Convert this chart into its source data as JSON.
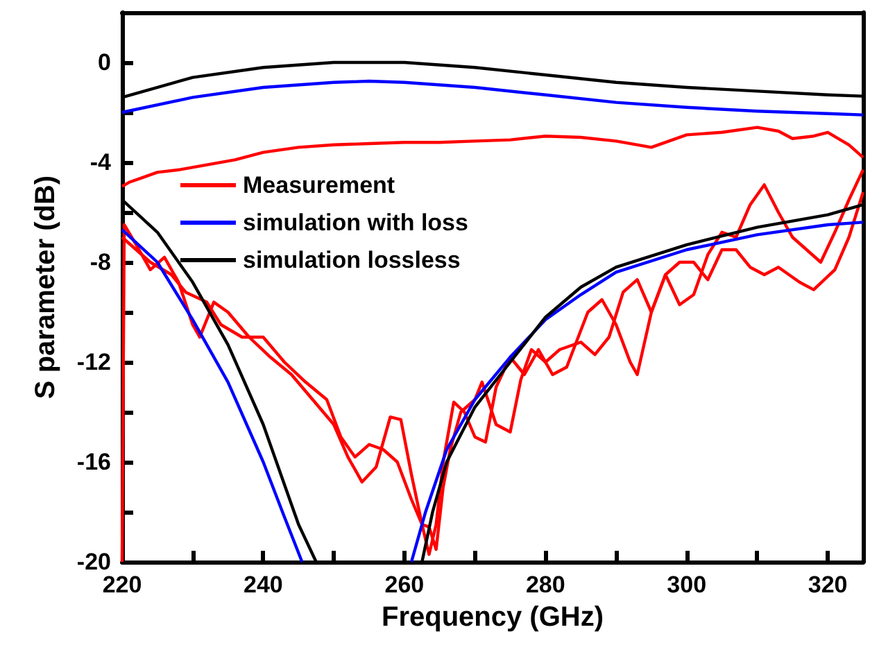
{
  "chart_data": {
    "type": "line",
    "xlabel": "Frequency (GHz)",
    "ylabel": "S parameter (dB)",
    "xlim": [
      220,
      325
    ],
    "ylim": [
      -20,
      2
    ],
    "xticks": [
      220,
      {
        "value": 230,
        "label": null
      },
      240,
      {
        "value": 250,
        "label": null
      },
      260,
      {
        "value": 270,
        "label": null
      },
      280,
      {
        "value": 290,
        "label": null
      },
      300,
      {
        "value": 310,
        "label": null
      },
      320
    ],
    "yticks": [
      -20,
      {
        "value": -18,
        "label": null
      },
      -16,
      {
        "value": -14,
        "label": null
      },
      -12,
      {
        "value": -10,
        "label": null
      },
      -8,
      {
        "value": -6,
        "label": null
      },
      -4,
      {
        "value": -2,
        "label": null
      },
      0,
      {
        "value": 2,
        "label": null
      }
    ],
    "grid": false,
    "legend": "top left",
    "marker": "none",
    "series": [
      {
        "name": "Measurement",
        "color": "#ff0000",
        "x": [
          220,
          221,
          223,
          225,
          228,
          232,
          236,
          240,
          245,
          250,
          255,
          260,
          265,
          270,
          275,
          280,
          285,
          290,
          295,
          300,
          305,
          310,
          313,
          315,
          318,
          320,
          323,
          325
        ],
        "values": [
          -4.96,
          -4.8,
          -4.6,
          -4.4,
          -4.3,
          -4.1,
          -3.9,
          -3.6,
          -3.4,
          -3.3,
          -3.25,
          -3.2,
          -3.2,
          -3.15,
          -3.1,
          -2.95,
          -3.0,
          -3.15,
          -3.4,
          -2.9,
          -2.8,
          -2.6,
          -2.75,
          -3.05,
          -2.95,
          -2.8,
          -3.3,
          -3.8
        ]
      },
      {
        "color": "#ff0000",
        "x": [
          220,
          220.3,
          222,
          224,
          226,
          228,
          230,
          231,
          233,
          235,
          238,
          241,
          244,
          247,
          250,
          252,
          254,
          256,
          258,
          259.5,
          261,
          262.5,
          263.5,
          264.5,
          265.5,
          267,
          268.5,
          270,
          271.5,
          273,
          275,
          277,
          279,
          281,
          283,
          286,
          288,
          290,
          292,
          293,
          295,
          297,
          299,
          301,
          303,
          305,
          307,
          309,
          311,
          313,
          316,
          318,
          321,
          323,
          325
        ],
        "values": [
          -20,
          -6.5,
          -7.3,
          -8.3,
          -7.8,
          -8.8,
          -10.5,
          -11,
          -9.6,
          -10,
          -11,
          -11.8,
          -12.5,
          -13.5,
          -14.5,
          -15.8,
          -16.8,
          -16.2,
          -14.2,
          -14.3,
          -16.5,
          -18.5,
          -19.7,
          -18.5,
          -16,
          -13.6,
          -14,
          -15,
          -15.2,
          -13,
          -11.8,
          -12.5,
          -11.5,
          -12.5,
          -12.2,
          -10,
          -9.5,
          -10.5,
          -12,
          -12.5,
          -10,
          -8.5,
          -8,
          -8,
          -8.7,
          -7.5,
          -7.5,
          -8.2,
          -8.5,
          -8.2,
          -8.8,
          -9.1,
          -8.3,
          -7,
          -5.2
        ]
      },
      {
        "color": "#ff0000",
        "x": [
          220,
          222,
          224,
          227,
          229,
          232,
          234,
          237,
          240,
          243,
          246,
          249,
          251,
          253,
          255,
          257,
          259,
          261,
          262.5,
          263.5,
          264.5,
          265.5,
          266.5,
          268,
          270,
          271,
          273,
          275,
          276.5,
          278,
          280,
          282,
          285,
          287,
          289,
          291,
          293,
          295,
          297,
          299,
          301,
          303,
          305,
          307,
          309,
          311,
          313,
          315,
          317,
          319,
          321,
          323,
          325
        ],
        "values": [
          -7,
          -7.5,
          -8,
          -8.5,
          -9.2,
          -9.6,
          -10.5,
          -11,
          -11,
          -12,
          -12.8,
          -13.5,
          -15,
          -15.8,
          -15.3,
          -15.5,
          -16,
          -17.5,
          -18.5,
          -18.6,
          -19.5,
          -17,
          -15.5,
          -14,
          -13.5,
          -12.8,
          -14.5,
          -14.8,
          -12.7,
          -11.5,
          -12,
          -11.5,
          -11.2,
          -11.7,
          -11,
          -9.2,
          -8.7,
          -10,
          -8.5,
          -9.7,
          -9.3,
          -7.7,
          -6.8,
          -7,
          -5.7,
          -4.9,
          -6,
          -7,
          -7.5,
          -8,
          -6.8,
          -5.5,
          -4.3
        ]
      },
      {
        "name": "simulation with loss",
        "color": "#0000ff",
        "x": [
          220,
          230,
          240,
          250,
          255,
          260,
          270,
          280,
          290,
          300,
          310,
          320,
          325
        ],
        "values": [
          -2,
          -1.4,
          -1.0,
          -0.8,
          -0.75,
          -0.8,
          -1.0,
          -1.3,
          -1.6,
          -1.8,
          -1.95,
          -2.05,
          -2.1
        ]
      },
      {
        "color": "#0000ff",
        "x": [
          220,
          225,
          230,
          235,
          240,
          243,
          245.5
        ],
        "values": [
          -6.7,
          -8,
          -10.3,
          -12.8,
          -16,
          -18.2,
          -20
        ]
      },
      {
        "color": "#0000ff",
        "x": [
          261,
          263,
          266,
          270,
          275,
          280,
          285,
          290,
          300,
          310,
          320,
          325
        ],
        "values": [
          -20,
          -18,
          -15.5,
          -13.5,
          -11.8,
          -10.3,
          -9.3,
          -8.4,
          -7.5,
          -6.9,
          -6.5,
          -6.4
        ]
      },
      {
        "name": "simulation lossless",
        "color": "#000000",
        "x": [
          220,
          230,
          240,
          250,
          260,
          270,
          280,
          290,
          300,
          310,
          320,
          325
        ],
        "values": [
          -1.4,
          -0.6,
          -0.2,
          0,
          0,
          -0.2,
          -0.5,
          -0.8,
          -1.0,
          -1.15,
          -1.3,
          -1.35
        ]
      },
      {
        "color": "#000000",
        "x": [
          220,
          225,
          230,
          235,
          240,
          243,
          245,
          247.5
        ],
        "values": [
          -5.5,
          -6.8,
          -8.8,
          -11.3,
          -14.5,
          -16.9,
          -18.5,
          -20
        ]
      },
      {
        "color": "#000000",
        "x": [
          262.5,
          264,
          266,
          270,
          275,
          280,
          285,
          290,
          300,
          310,
          320,
          325
        ],
        "values": [
          -20,
          -18,
          -16,
          -13.8,
          -12,
          -10.2,
          -9,
          -8.2,
          -7.3,
          -6.6,
          -6.1,
          -5.7
        ]
      }
    ]
  }
}
